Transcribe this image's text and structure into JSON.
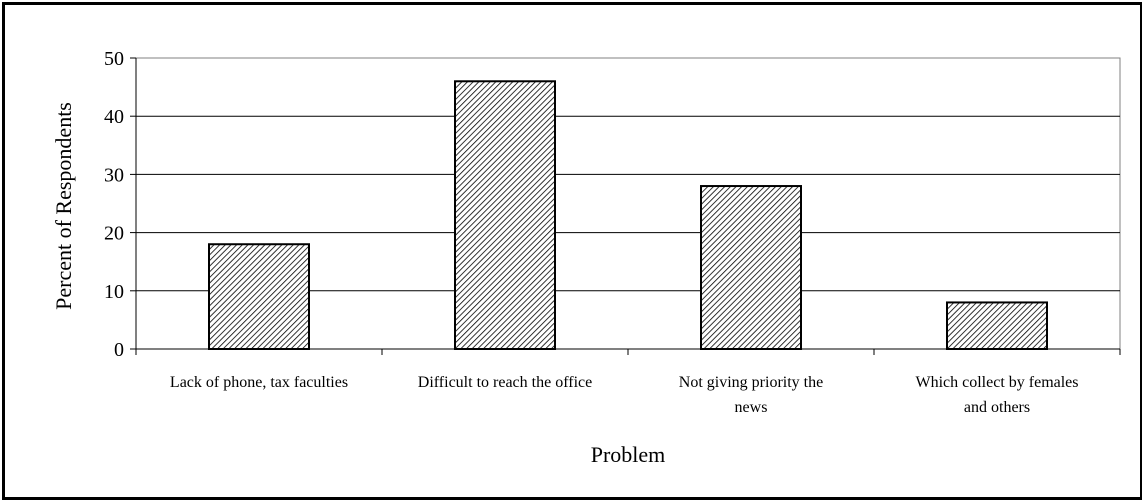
{
  "chart_data": {
    "type": "bar",
    "title": "",
    "xlabel": "Problem",
    "ylabel": "Percent  of Respondents",
    "categories": [
      [
        "Lack of phone, tax faculties"
      ],
      [
        "Difficult to reach the office"
      ],
      [
        "Not giving priority the",
        "news"
      ],
      [
        "Which collect by females",
        "and others"
      ]
    ],
    "values": [
      18,
      46,
      28,
      8
    ],
    "ylim": [
      0,
      50
    ],
    "yticks": [
      0,
      10,
      20,
      30,
      40,
      50
    ],
    "grid": true,
    "legend": "none",
    "colors": {
      "bar_fill": "#000000",
      "bar_background": "#ffffff",
      "gridline": "#000000",
      "axis": "#808080"
    }
  }
}
